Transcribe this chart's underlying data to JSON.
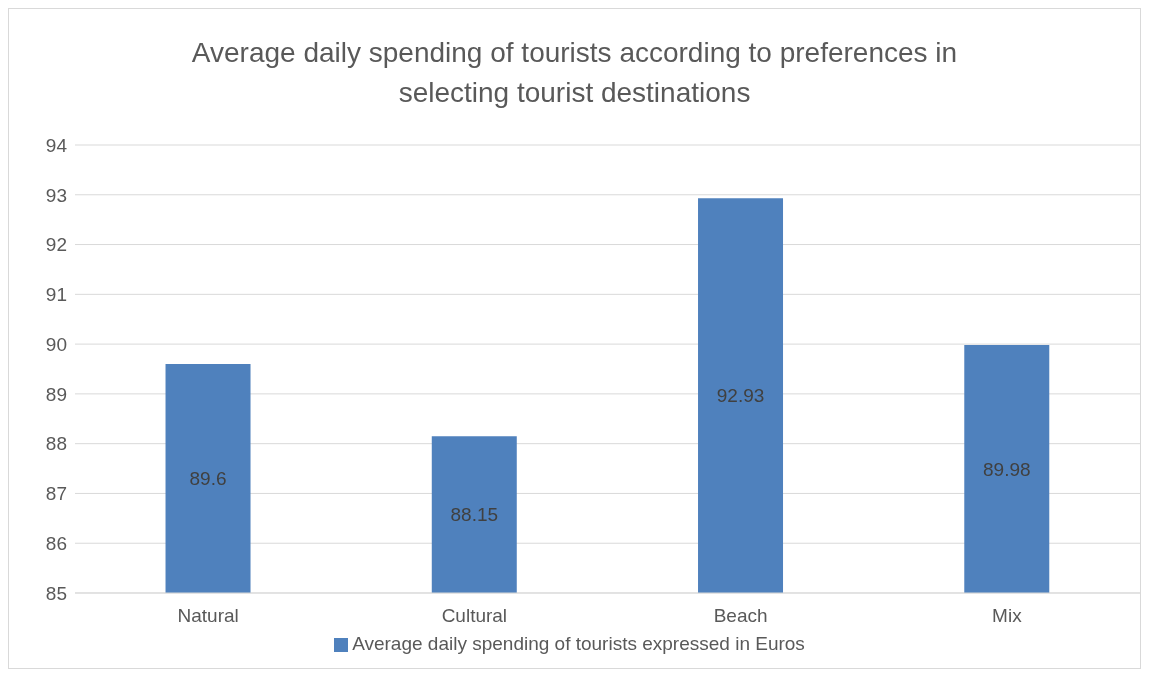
{
  "chart_data": {
    "type": "bar",
    "title": "Average daily spending of tourists according to preferences in selecting tourist destinations",
    "categories": [
      "Natural",
      "Cultural",
      "Beach",
      "Mix"
    ],
    "series": [
      {
        "name": "Average daily spending of tourists expressed in Euros",
        "color": "#4f81bd",
        "values": [
          89.6,
          88.15,
          92.93,
          89.98
        ]
      }
    ],
    "ylim": [
      85,
      94
    ],
    "yticks": [
      85,
      86,
      87,
      88,
      89,
      90,
      91,
      92,
      93,
      94
    ],
    "grid": "y",
    "legend": "bottom",
    "data_labels": true
  }
}
